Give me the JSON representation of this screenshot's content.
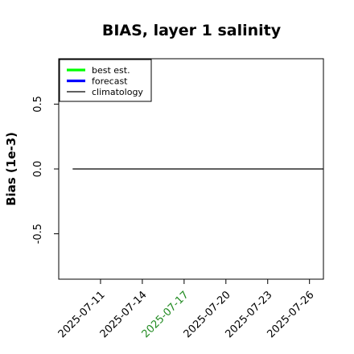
{
  "chart_data": {
    "type": "line",
    "title": "BIAS, layer 1 salinity",
    "xlabel": "",
    "ylabel": "Bias (1e-3)",
    "x_ticks": [
      "2025-07-11",
      "2025-07-14",
      "2025-07-17",
      "2025-07-20",
      "2025-07-23",
      "2025-07-26"
    ],
    "highlighted_tick": "2025-07-17",
    "highlight_color": "#228b22",
    "y_ticks": [
      "-0.5",
      "0.0",
      "0.5"
    ],
    "y_tick_values": [
      -0.5,
      0.0,
      0.5
    ],
    "ylim": [
      -0.85,
      0.85
    ],
    "xlim": [
      "2025-07-08",
      "2025-07-27"
    ],
    "grid": false,
    "legend_placement": "top-left",
    "series": [
      {
        "name": "best est.",
        "color": "#00ff00",
        "x": [],
        "values": []
      },
      {
        "name": "forecast",
        "color": "#0000ff",
        "x": [],
        "values": []
      },
      {
        "name": "climatology",
        "color": "#000000",
        "x": [
          "2025-07-09",
          "2025-07-27"
        ],
        "values": [
          0.0,
          0.0
        ]
      }
    ]
  }
}
